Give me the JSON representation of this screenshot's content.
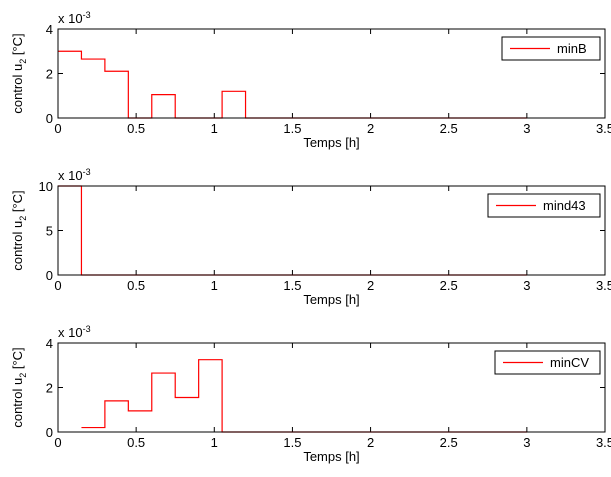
{
  "chart_data": [
    {
      "type": "step",
      "series": [
        {
          "name": "minB",
          "color": "#ff0000",
          "x": [
            0,
            0.15,
            0.3,
            0.45,
            0.6,
            0.75,
            1.05,
            1.2,
            3.0
          ],
          "values": [
            3.0,
            2.65,
            2.1,
            0,
            1.05,
            0,
            1.2,
            0,
            0
          ]
        }
      ],
      "xlabel": "Temps [h]",
      "ylabel": "control u",
      "ylabel_sub": "2",
      "ylabel_unit": " [°C]",
      "y_scale": "x 10",
      "y_scale_exponent": "-3",
      "xlim": [
        0,
        3.5
      ],
      "xticks": [
        0,
        0.5,
        1,
        1.5,
        2,
        2.5,
        3,
        3.5
      ],
      "ylim": [
        0,
        4
      ],
      "yticks": [
        0,
        2,
        4
      ],
      "legend": "upper right"
    },
    {
      "type": "step",
      "series": [
        {
          "name": "mind43",
          "color": "#ff0000",
          "x": [
            0,
            0.15,
            3.0
          ],
          "values": [
            10,
            0,
            0
          ]
        }
      ],
      "xlabel": "Temps [h]",
      "ylabel": "control u",
      "ylabel_sub": "2",
      "ylabel_unit": " [°C]",
      "y_scale": "x 10",
      "y_scale_exponent": "-3",
      "xlim": [
        0,
        3.5
      ],
      "xticks": [
        0,
        0.5,
        1,
        1.5,
        2,
        2.5,
        3,
        3.5
      ],
      "ylim": [
        0,
        10
      ],
      "yticks": [
        0,
        5,
        10
      ],
      "legend": "upper right"
    },
    {
      "type": "step",
      "series": [
        {
          "name": "minCV",
          "color": "#ff0000",
          "x": [
            0.15,
            0.3,
            0.45,
            0.6,
            0.75,
            0.9,
            1.05,
            3.0
          ],
          "values": [
            0.2,
            1.4,
            0.95,
            2.65,
            1.55,
            3.25,
            0,
            0
          ]
        }
      ],
      "xlabel": "Temps [h]",
      "ylabel": "control u",
      "ylabel_sub": "2",
      "ylabel_unit": " [°C]",
      "y_scale": "x 10",
      "y_scale_exponent": "-3",
      "xlim": [
        0,
        3.5
      ],
      "xticks": [
        0,
        0.5,
        1,
        1.5,
        2,
        2.5,
        3,
        3.5
      ],
      "ylim": [
        0,
        4
      ],
      "yticks": [
        0,
        2,
        4
      ],
      "legend": "upper right"
    }
  ]
}
